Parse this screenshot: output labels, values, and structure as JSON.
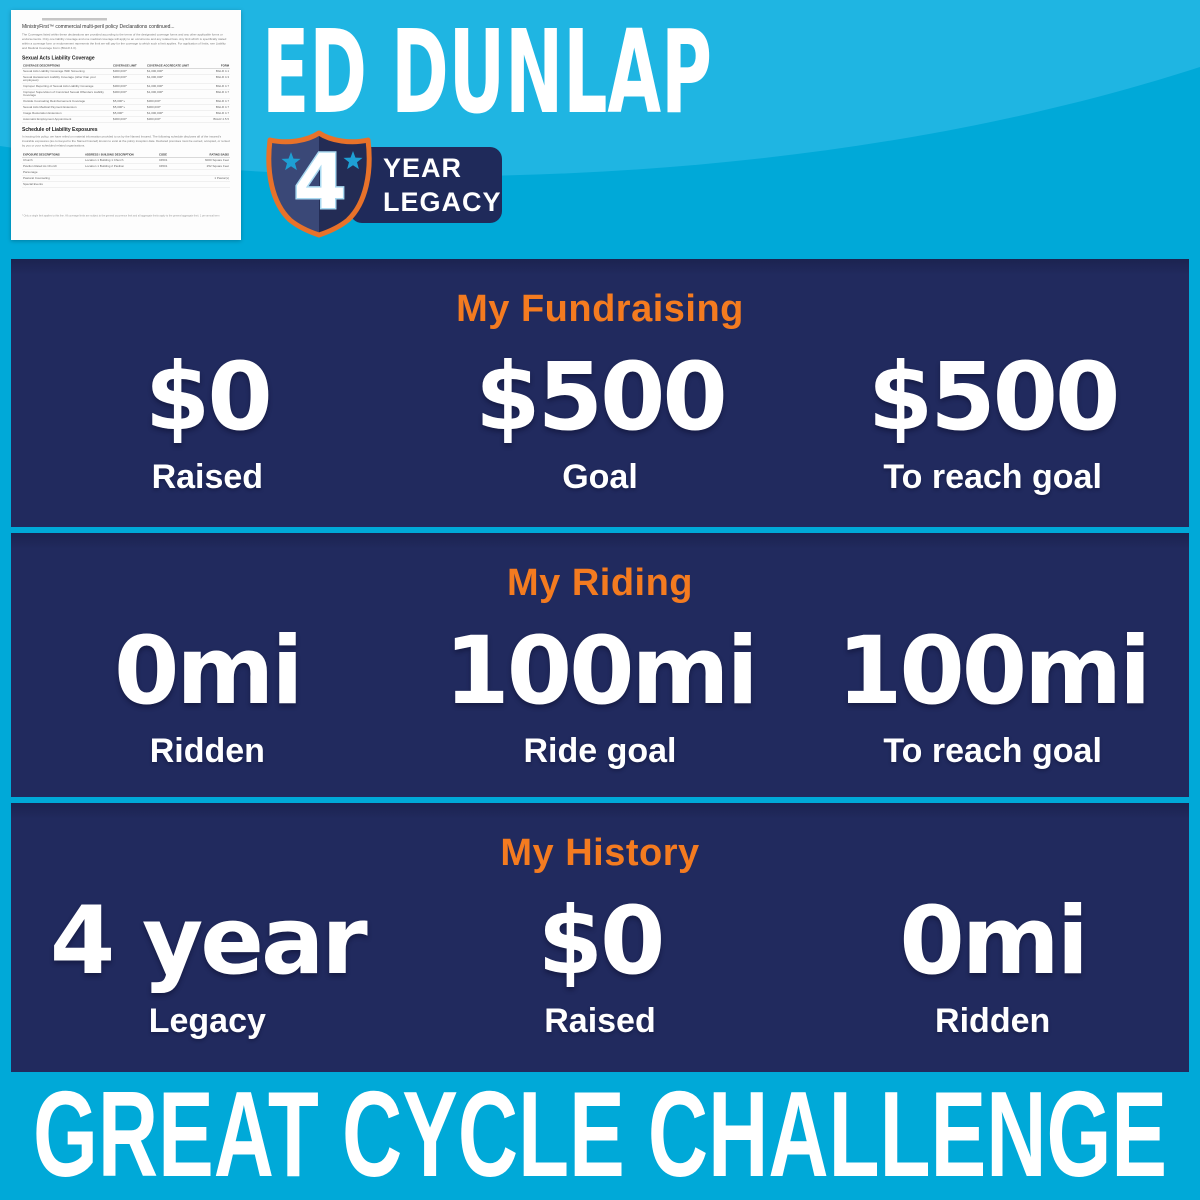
{
  "rider": {
    "name": "ED DUNLAP"
  },
  "badge": {
    "years": "4",
    "line1": "YEAR",
    "line2": "LEGACY",
    "icons": [
      "shield-icon",
      "star-icon",
      "star-icon"
    ]
  },
  "panels": [
    {
      "title": "My Fundraising",
      "stats": [
        {
          "value": "$0",
          "label": "Raised"
        },
        {
          "value": "$500",
          "label": "Goal"
        },
        {
          "value": "$500",
          "label": "To reach goal"
        }
      ]
    },
    {
      "title": "My Riding",
      "stats": [
        {
          "value": "0mi",
          "label": "Ridden"
        },
        {
          "value": "100mi",
          "label": "Ride goal"
        },
        {
          "value": "100mi",
          "label": "To reach goal"
        }
      ]
    },
    {
      "title": "My History",
      "stats": [
        {
          "value": "4 year",
          "label": "Legacy"
        },
        {
          "value": "$0",
          "label": "Raised"
        },
        {
          "value": "0mi",
          "label": "Ridden"
        }
      ]
    }
  ],
  "footer": {
    "text": "GREAT CYCLE CHALLENGE"
  },
  "document": {
    "title": "MinistryFirst™ commercial multi-peril policy Declarations continued...",
    "intro": "The Coverages listed within these declarations are provided according to the terms of the designated coverage forms and any other applicable forms or endorsements. Only one liability coverage and one medical coverage will apply to an occurrence and any related loss. Any limit which is specifically stated within a coverage form or endorsement represents the limit we will pay for the coverage to which such a limit applies. For application of limits, see Liability and Medical Coverage Form (BGLR 4.0).",
    "coverage": {
      "heading": "Sexual Acts Liability Coverage",
      "columns": [
        "COVERAGE DESCRIPTIONS",
        "COVERAGE LIMIT",
        "COVERAGE AGGREGATE LIMIT",
        "FORM"
      ],
      "rows": [
        {
          "d": "Sexual Acts Liability Coverage With Screening",
          "l": "$300,000*",
          "a": "$1,000,000*",
          "f": "BGLR 4.1"
        },
        {
          "d": "Sexual Harassment Liability Coverage (other than your employees)",
          "l": "$300,000*",
          "a": "$1,000,000*",
          "f": "BGLR 4.3"
        },
        {
          "d": "Improper Reporting of Sexual Acts Liability Coverage",
          "l": "$300,000*",
          "a": "$1,000,000*",
          "f": "BGLR 4.7"
        },
        {
          "d": "Improper Supervision of Convicted Sexual Offenders Liability Coverage",
          "l": "$300,000*",
          "a": "$1,000,000*",
          "f": "BGLR 4.7"
        },
        {
          "d": "Outside Counseling Reimbursement Coverage",
          "l": "$5,000*+",
          "a": "$300,000*",
          "f": "BGLR 4.7"
        },
        {
          "d": "Sexual Acts Medical Payment Extension",
          "l": "$5,000*+",
          "a": "$300,000*",
          "f": "BGLR 4.7"
        },
        {
          "d": "Image Restoration Extension",
          "l": "$5,000*",
          "a": "$1,000,000*",
          "f": "BGLR 4.7"
        },
        {
          "d": "Automatic Employment Appointment",
          "l": "$300,000*",
          "a": "$300,000*",
          "f": "BGLR 4.5.5"
        }
      ]
    },
    "exposures": {
      "heading": "Schedule of Liability Exposures",
      "intro": "In issuing this policy, we have relied on material information provided to us by the Named Insured. The following schedule discloses all of the insured's insurable exposures (as conveyed to the Named Insured) known to exist at the policy inception date. Declared premises must be owned, occupied, or rented by you or your scheduled related organizations.",
      "columns": [
        "EXPOSURE DESCRIPTIONS",
        "ADDRESS / BUILDING DESCRIPTION",
        "CODE",
        "RATING BASIS"
      ],
      "rows": [
        {
          "d": "Church",
          "b": "Location 1 Building 1 Church",
          "c": "04501",
          "r": "6000 Square Feet"
        },
        {
          "d": "Pavilion Rated As Church",
          "b": "Location 1 Building 2 Pavilion",
          "c": "04501",
          "r": "252 Square Feet"
        },
        {
          "d": "Parsonage",
          "b": "",
          "c": "",
          "r": ""
        },
        {
          "d": "Pastoral Counseling",
          "b": "",
          "c": "",
          "r": "1 Pastor(s)"
        },
        {
          "d": "Special Events",
          "b": "",
          "c": "",
          "r": ""
        }
      ]
    },
    "footnote": "* Only a single limit applies to this line. All coverage limits are subject to the general occurrence limit and all aggregate limits apply to the general aggregate limit. 1 per annual term"
  },
  "colors": {
    "bg_top": "#1fb5e2",
    "bg_bottom": "#00a9d8",
    "panel": "#212a5e",
    "panel_edge": "#1b2350",
    "accent_orange": "#f47b20",
    "text_white": "#ffffff",
    "shield_stroke": "#e8722a",
    "shield_left": "#3a4877",
    "shield_right": "#232c55",
    "star_cyan": "#1e9fd4",
    "four_outline": "#a9d9f0",
    "pill_navy": "#1f2a5a"
  }
}
